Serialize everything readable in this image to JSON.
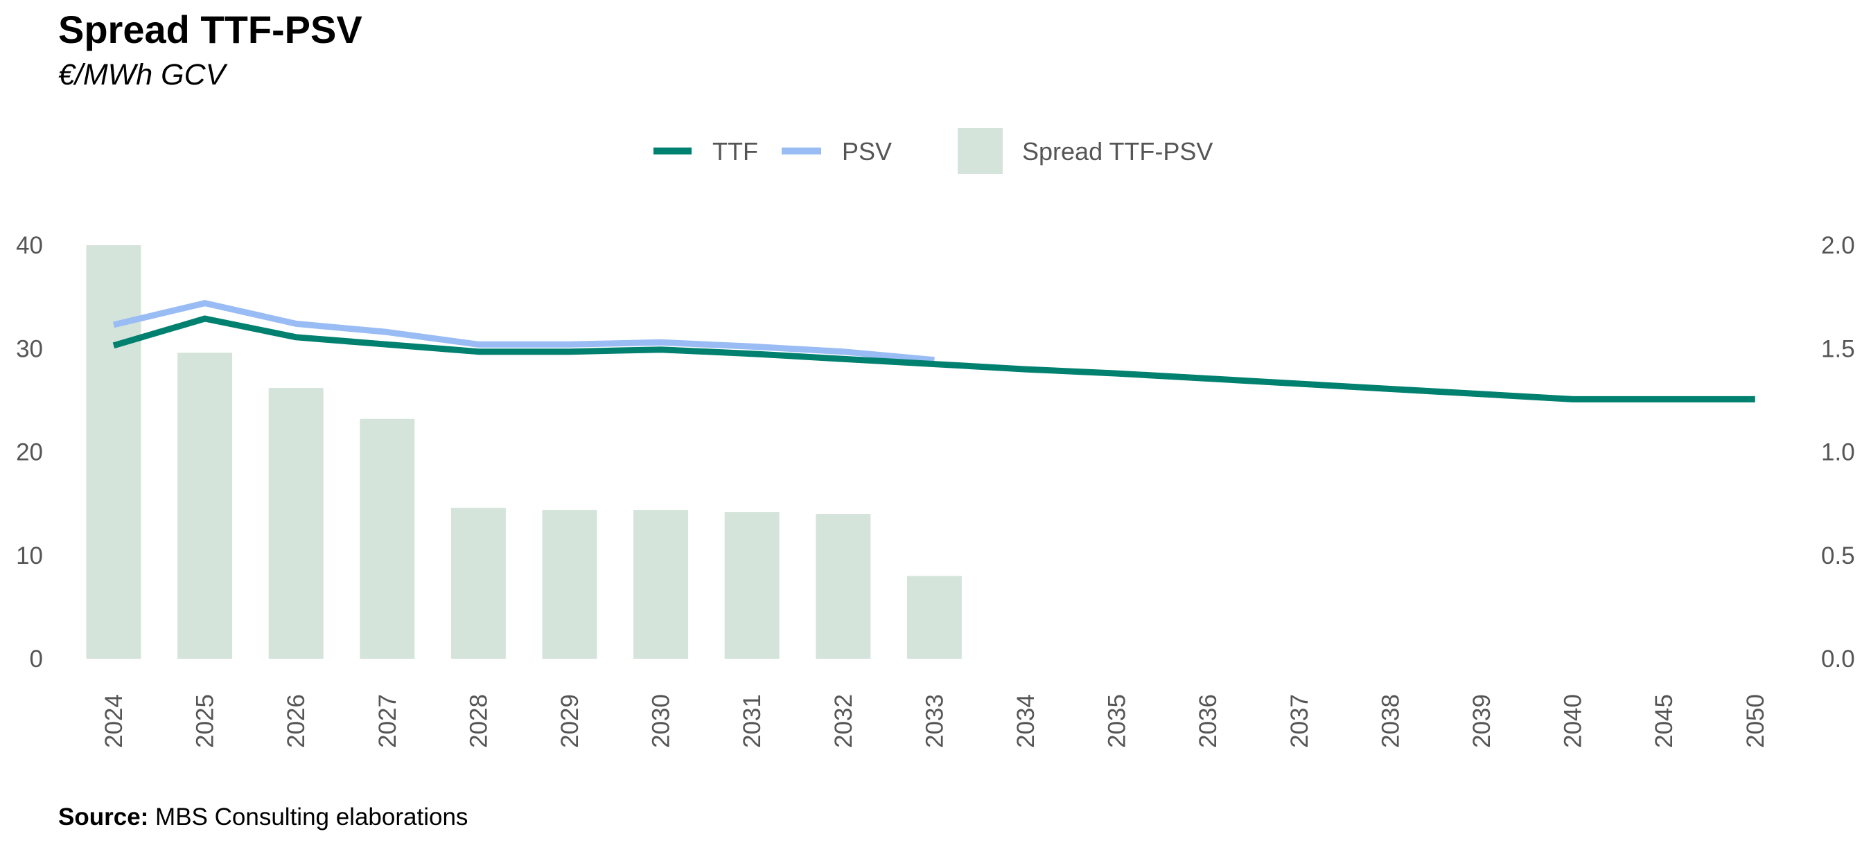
{
  "title": "Spread TTF-PSV",
  "subtitle": "€/MWh GCV",
  "source": {
    "label": "Source:",
    "text": "MBS Consulting elaborations"
  },
  "colors": {
    "ttf": "#00806F",
    "psv": "#99BCF5",
    "spread": "#D5E4DA",
    "tick": "#555555"
  },
  "chart_data": {
    "type": "bar+line",
    "categories": [
      "2024",
      "2025",
      "2026",
      "2027",
      "2028",
      "2029",
      "2030",
      "2031",
      "2032",
      "2033",
      "2034",
      "2035",
      "2036",
      "2037",
      "2038",
      "2039",
      "2040",
      "2045",
      "2050"
    ],
    "series": [
      {
        "name": "TTF",
        "type": "line",
        "axis": "left",
        "values": [
          30.3,
          32.9,
          31.1,
          30.4,
          29.7,
          29.7,
          29.9,
          29.5,
          29.0,
          28.5,
          28.0,
          27.6,
          27.1,
          26.6,
          26.1,
          25.6,
          25.1,
          25.1,
          25.1
        ]
      },
      {
        "name": "PSV",
        "type": "line",
        "axis": "left",
        "values": [
          32.3,
          34.4,
          32.4,
          31.6,
          30.4,
          30.4,
          30.6,
          30.2,
          29.7,
          28.9,
          null,
          null,
          null,
          null,
          null,
          null,
          null,
          null,
          null
        ]
      },
      {
        "name": "Spread TTF-PSV",
        "type": "bar",
        "axis": "right",
        "values": [
          2.0,
          1.48,
          1.31,
          1.16,
          0.73,
          0.72,
          0.72,
          0.71,
          0.7,
          0.4,
          null,
          null,
          null,
          null,
          null,
          null,
          null,
          null,
          null
        ]
      }
    ],
    "y_left": {
      "min": 0,
      "max": 40,
      "ticks": [
        "0",
        "10",
        "20",
        "30",
        "40"
      ]
    },
    "y_right": {
      "min": 0,
      "max": 2,
      "ticks": [
        "0.0",
        "0.5",
        "1.0",
        "1.5",
        "2.0"
      ]
    },
    "legend": "top-center",
    "grid": false
  }
}
